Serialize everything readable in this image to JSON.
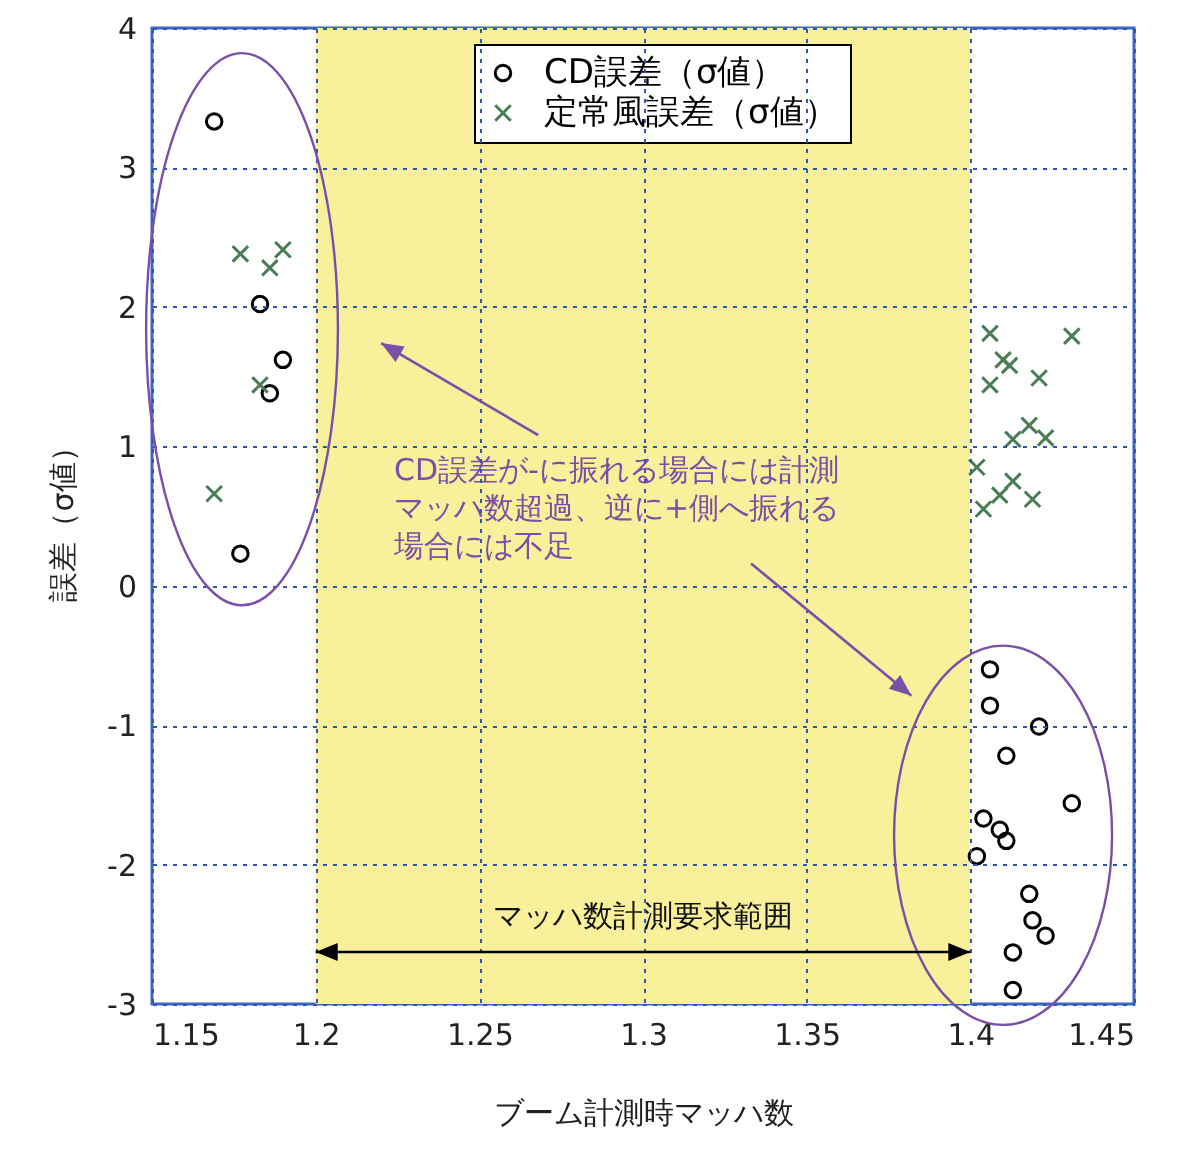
{
  "chart_data": {
    "type": "scatter",
    "xlabel": "ブーム計測時マッハ数",
    "ylabel": "誤差（σ値）",
    "xlim": [
      1.15,
      1.45
    ],
    "xticks": [
      1.15,
      {
        "value": 1.2,
        "label": "1.2"
      },
      1.25,
      {
        "value": 1.3,
        "label": "1.3"
      },
      1.35,
      {
        "value": 1.4,
        "label": "1.4"
      },
      1.45
    ],
    "ylim": [
      -3,
      4
    ],
    "yticks": [
      -3,
      -2,
      -1,
      0,
      1,
      2,
      3,
      4
    ],
    "grid": true,
    "legend": "top right",
    "series": [
      {
        "name": "CD誤差（σ値）",
        "color": "#000000",
        "marker": "circle",
        "x": [
          1.169,
          1.183,
          1.19,
          1.186,
          1.177,
          1.406,
          1.406,
          1.421,
          1.411,
          1.431,
          1.404,
          1.409,
          1.411,
          1.402,
          1.418,
          1.419,
          1.423,
          1.413,
          1.413
        ],
        "values": [
          3.33,
          2.02,
          1.62,
          1.38,
          0.23,
          -0.6,
          -0.86,
          -1.01,
          -1.22,
          -1.56,
          -1.67,
          -1.75,
          -1.83,
          -1.94,
          -2.21,
          -2.4,
          -2.51,
          -2.63,
          -2.9
        ]
      },
      {
        "name": "定常風誤差（σ値）",
        "color": "#4a7d55",
        "marker": "cross",
        "x": [
          1.177,
          1.19,
          1.186,
          1.183,
          1.169,
          1.406,
          1.431,
          1.41,
          1.412,
          1.406,
          1.421,
          1.418,
          1.413,
          1.423,
          1.402,
          1.413,
          1.409,
          1.419,
          1.404
        ],
        "values": [
          2.38,
          2.41,
          2.28,
          1.44,
          0.66,
          1.81,
          1.79,
          1.62,
          1.58,
          1.44,
          1.49,
          1.15,
          1.05,
          1.06,
          0.85,
          0.75,
          0.65,
          0.62,
          0.55
        ]
      }
    ],
    "bands": [
      {
        "axis": "x",
        "from": 1.2,
        "to": 1.4,
        "label": "マッハ数計測要求範囲",
        "color": "#f8f09a"
      }
    ],
    "annotations": [
      "CD誤差が-に振れる場合には計測マッハ数超過、逆に+側へ振れる場合には不足"
    ]
  }
}
